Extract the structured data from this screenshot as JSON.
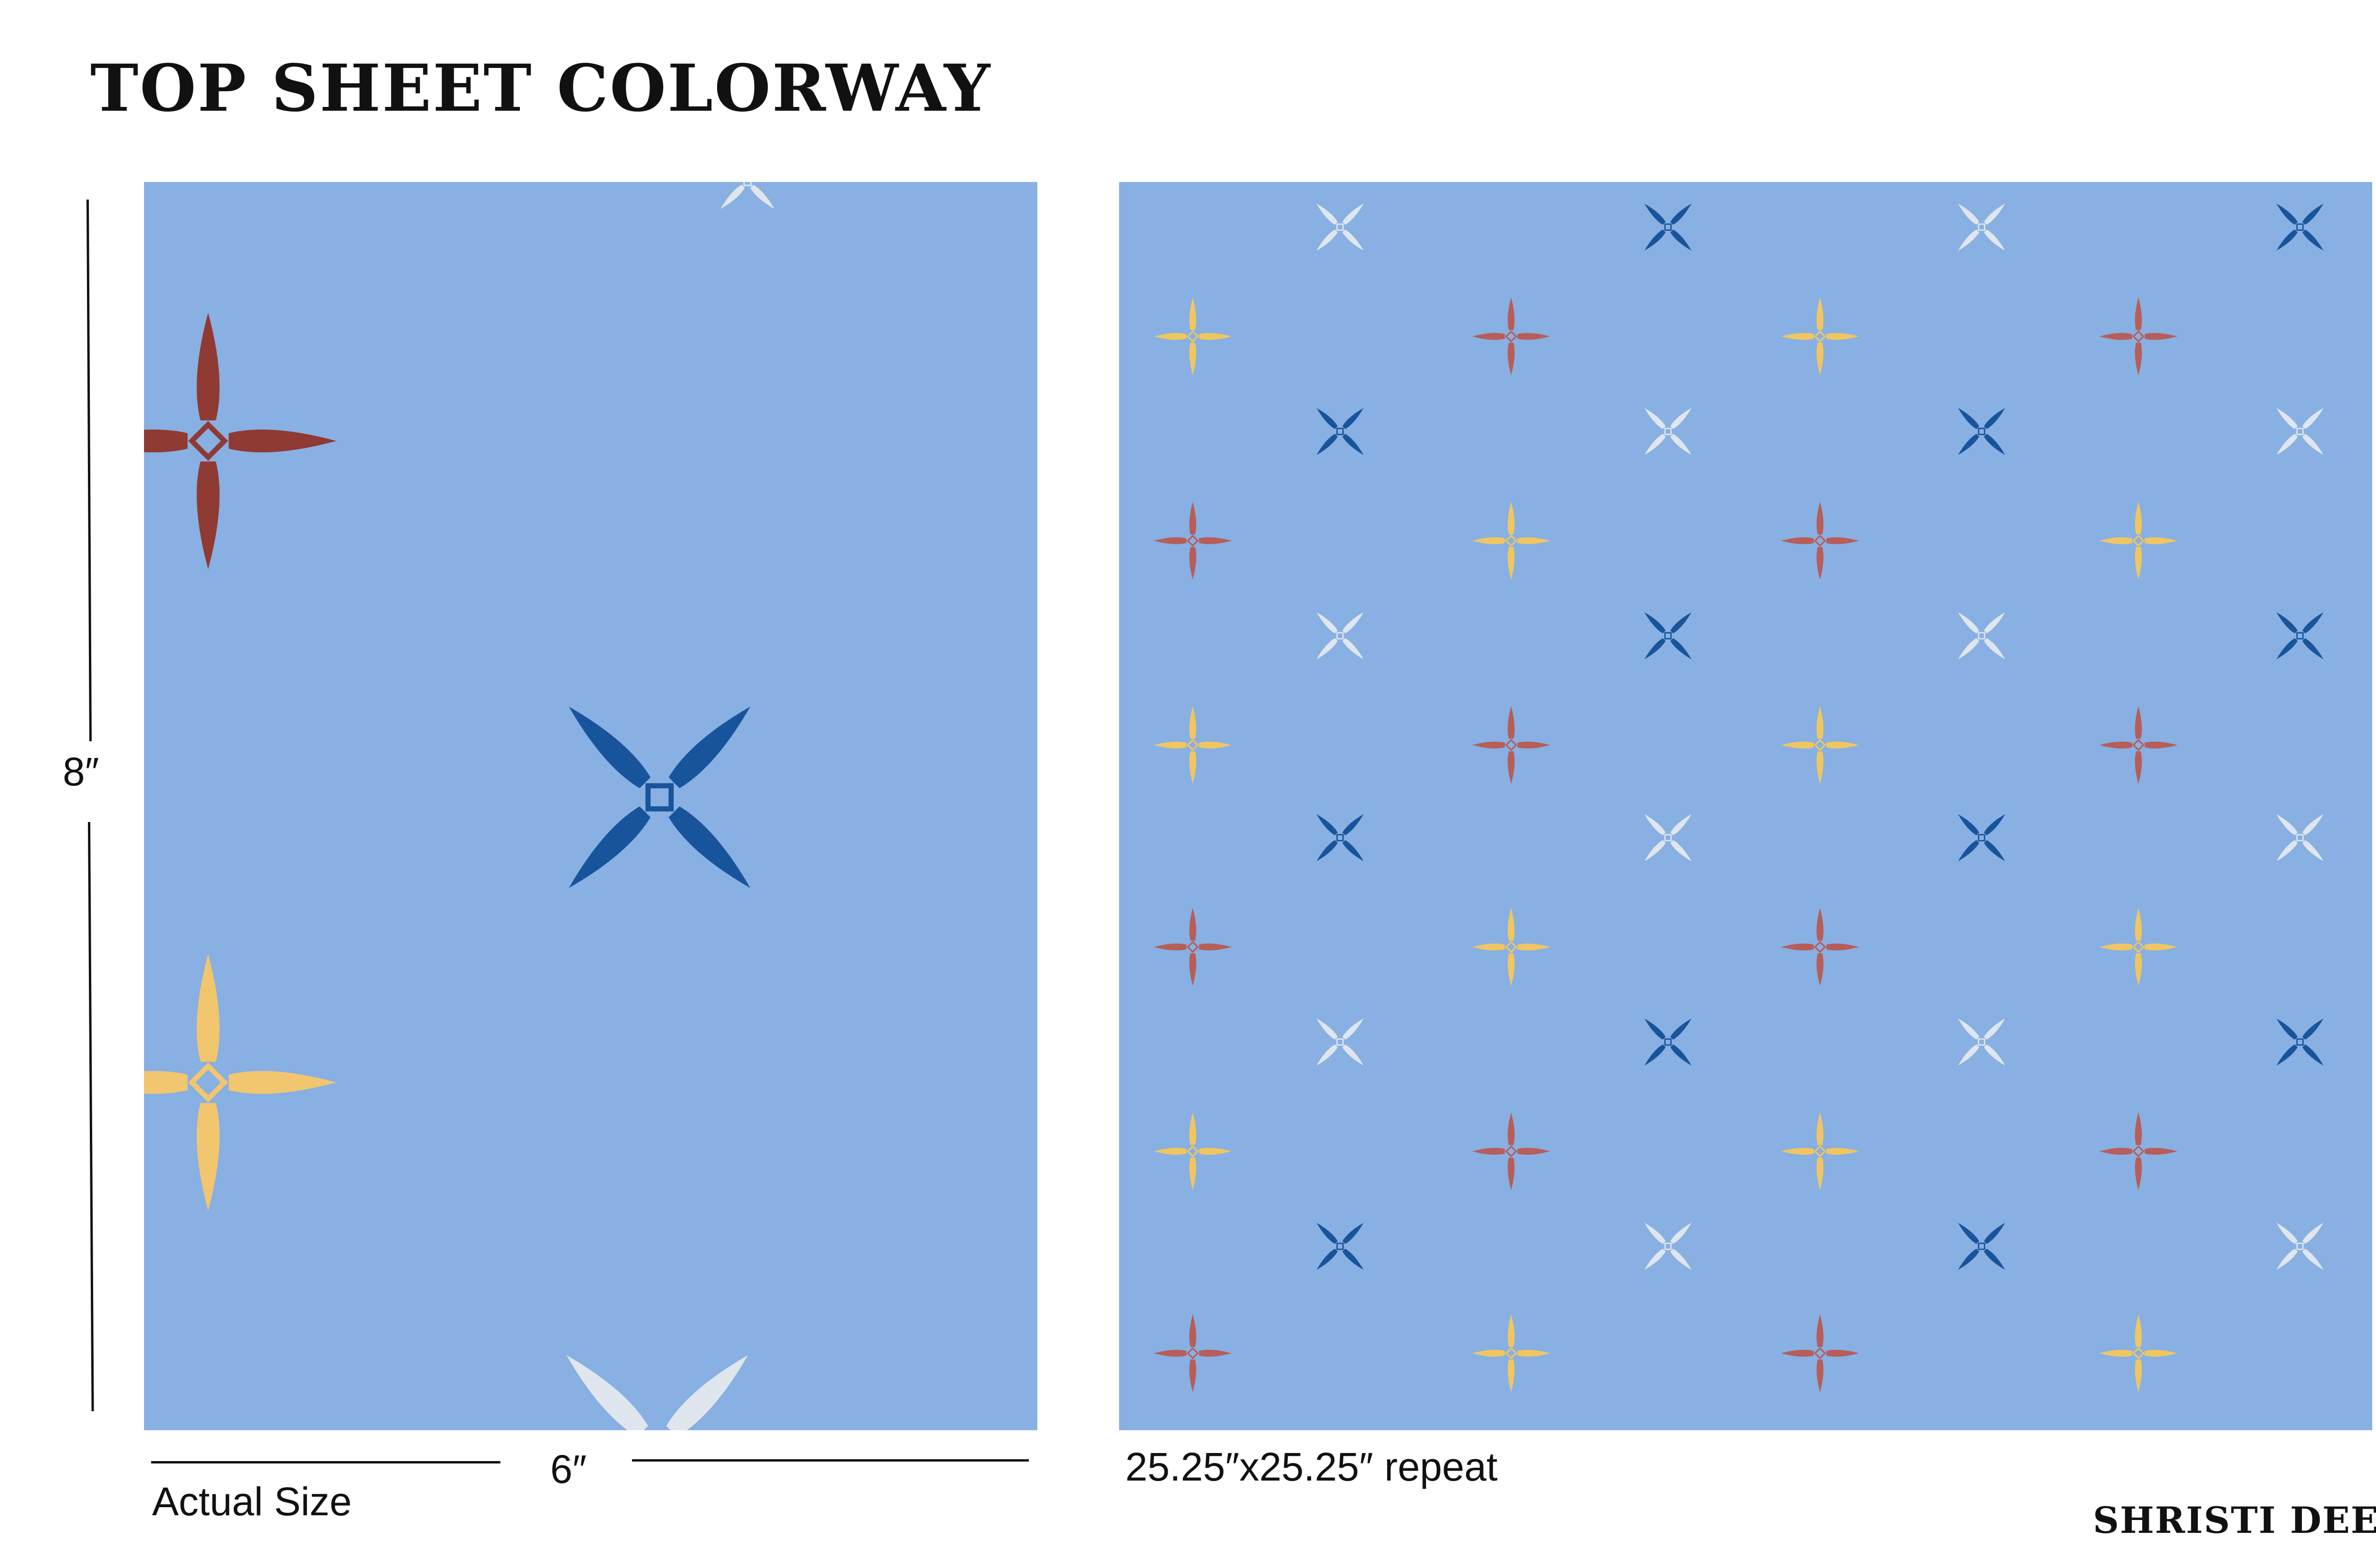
{
  "title": "TOP SHEET COLORWAY",
  "labels": {
    "height": "8″",
    "width": "6″",
    "actual_size": "Actual Size",
    "repeat": "25.25″x25.25″ repeat"
  },
  "signature": "SHRISTI DEEP",
  "colors": {
    "background": "#88b0e2",
    "red": "#8f3a33",
    "yellow": "#f2c66f",
    "navy": "#18549c",
    "white": "#dfe6ee",
    "repeat_red": "#b75d5a",
    "repeat_yellow": "#f0c662"
  },
  "motifs": {
    "plus_star": "four-point-plus-star-icon",
    "x_star": "four-point-x-star-icon"
  }
}
